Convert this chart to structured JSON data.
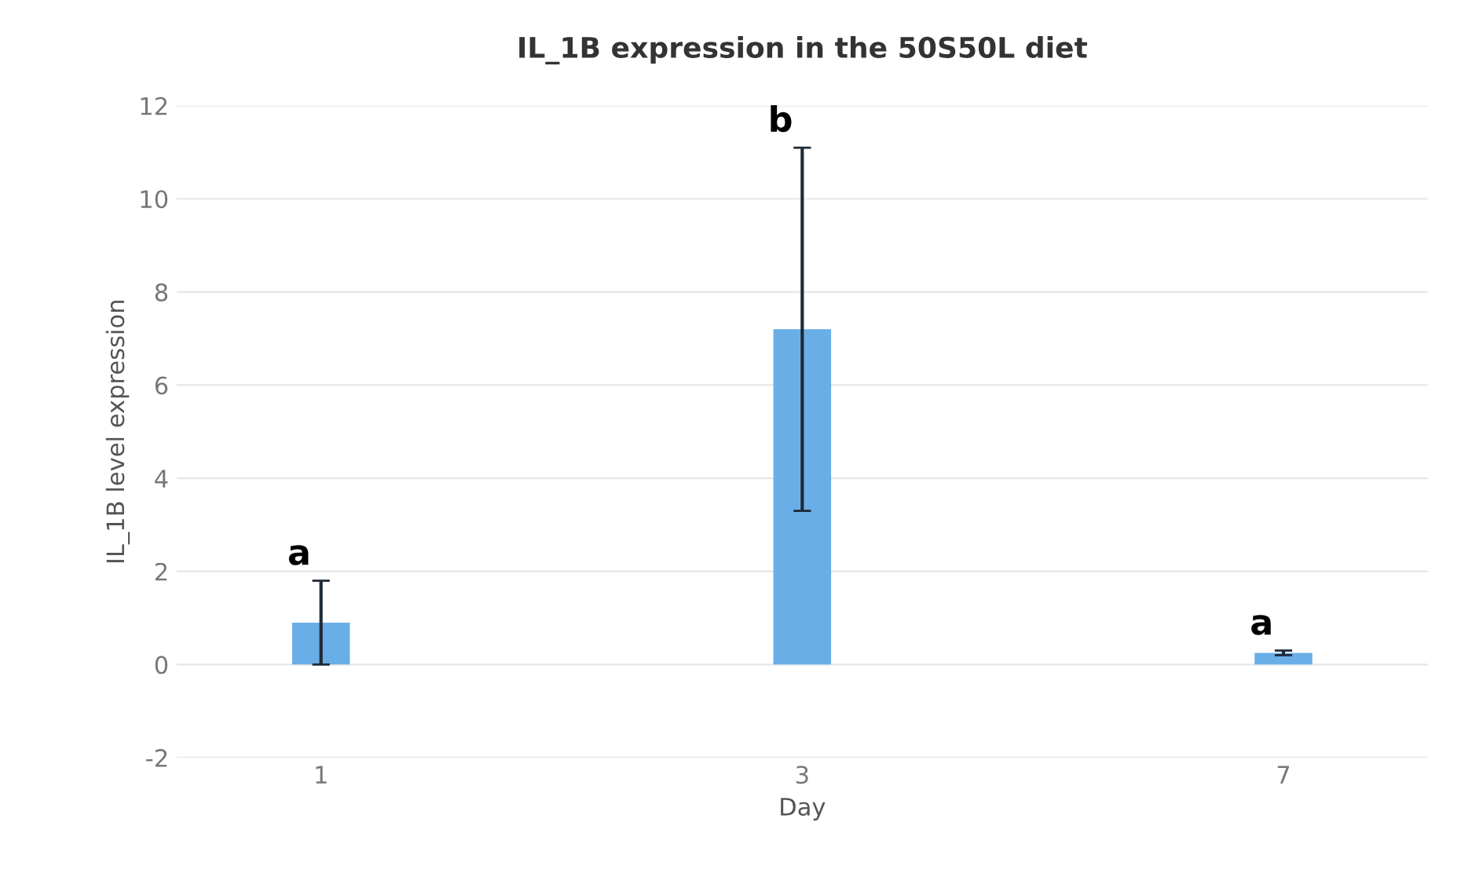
{
  "chart_data": {
    "type": "bar",
    "title": "IL_1B expression in the 50S50L diet",
    "xlabel": "Day",
    "ylabel": "IL_1B level expression",
    "categories": [
      "1",
      "3",
      "7"
    ],
    "series": [
      {
        "color": "#6aaee8",
        "values": [
          0.9,
          7.2,
          0.25
        ],
        "errors": [
          0.9,
          3.9,
          0.05
        ]
      }
    ],
    "ylim": [
      -2,
      12
    ],
    "yticks": [
      -2,
      0,
      2,
      4,
      6,
      8,
      10,
      12
    ],
    "grid": "y",
    "annotations": [
      "a",
      "b",
      "a"
    ]
  }
}
